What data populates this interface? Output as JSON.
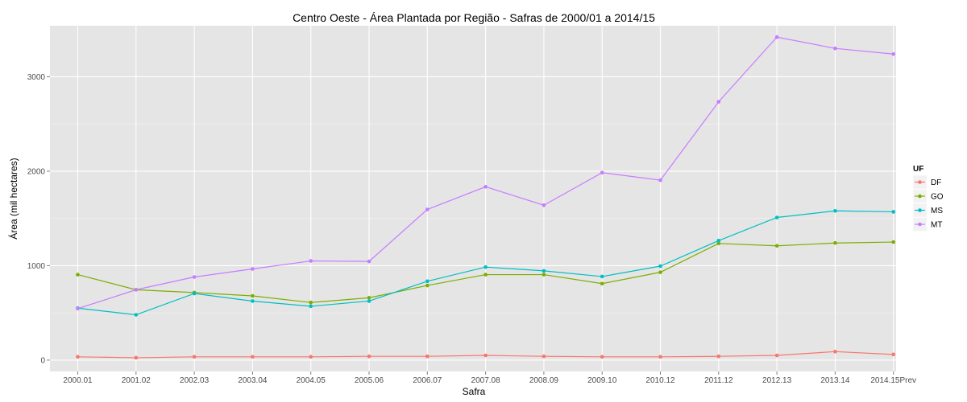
{
  "chart_data": {
    "type": "line",
    "title": "Centro Oeste  - Área Plantada por Região - Safras de 2000/01 a 2014/15",
    "xlabel": "Safra",
    "ylabel": "Área (mil hectares)",
    "categories": [
      "2000.01",
      "2001.02",
      "2002.03",
      "2003.04",
      "2004.05",
      "2005.06",
      "2006.07",
      "2007.08",
      "2008.09",
      "2009.10",
      "2010.12",
      "2011.12",
      "2012.13",
      "2013.14",
      "2014.15Prev"
    ],
    "y_ticks": [
      0,
      1000,
      2000,
      3000
    ],
    "y_tick_labels": [
      "0",
      "1000",
      "2000",
      "3000"
    ],
    "ylim": [
      -120,
      3540
    ],
    "grid": true,
    "legend": {
      "title": "UF",
      "position": "right"
    },
    "series": [
      {
        "name": "DF",
        "color": "#F8766D",
        "values": [
          35,
          25,
          35,
          35,
          35,
          40,
          40,
          50,
          40,
          35,
          35,
          40,
          50,
          90,
          60
        ]
      },
      {
        "name": "GO",
        "color": "#7CAE00",
        "values": [
          905,
          745,
          715,
          680,
          610,
          660,
          790,
          905,
          905,
          810,
          930,
          1235,
          1210,
          1240,
          1250
        ]
      },
      {
        "name": "MS",
        "color": "#00BFC4",
        "values": [
          550,
          480,
          705,
          625,
          570,
          625,
          835,
          985,
          945,
          885,
          995,
          1265,
          1510,
          1580,
          1570
        ]
      },
      {
        "name": "MT",
        "color": "#C77CFF",
        "values": [
          545,
          745,
          880,
          965,
          1050,
          1045,
          1595,
          1835,
          1640,
          1985,
          1905,
          2735,
          3420,
          3300,
          3240
        ]
      }
    ]
  }
}
